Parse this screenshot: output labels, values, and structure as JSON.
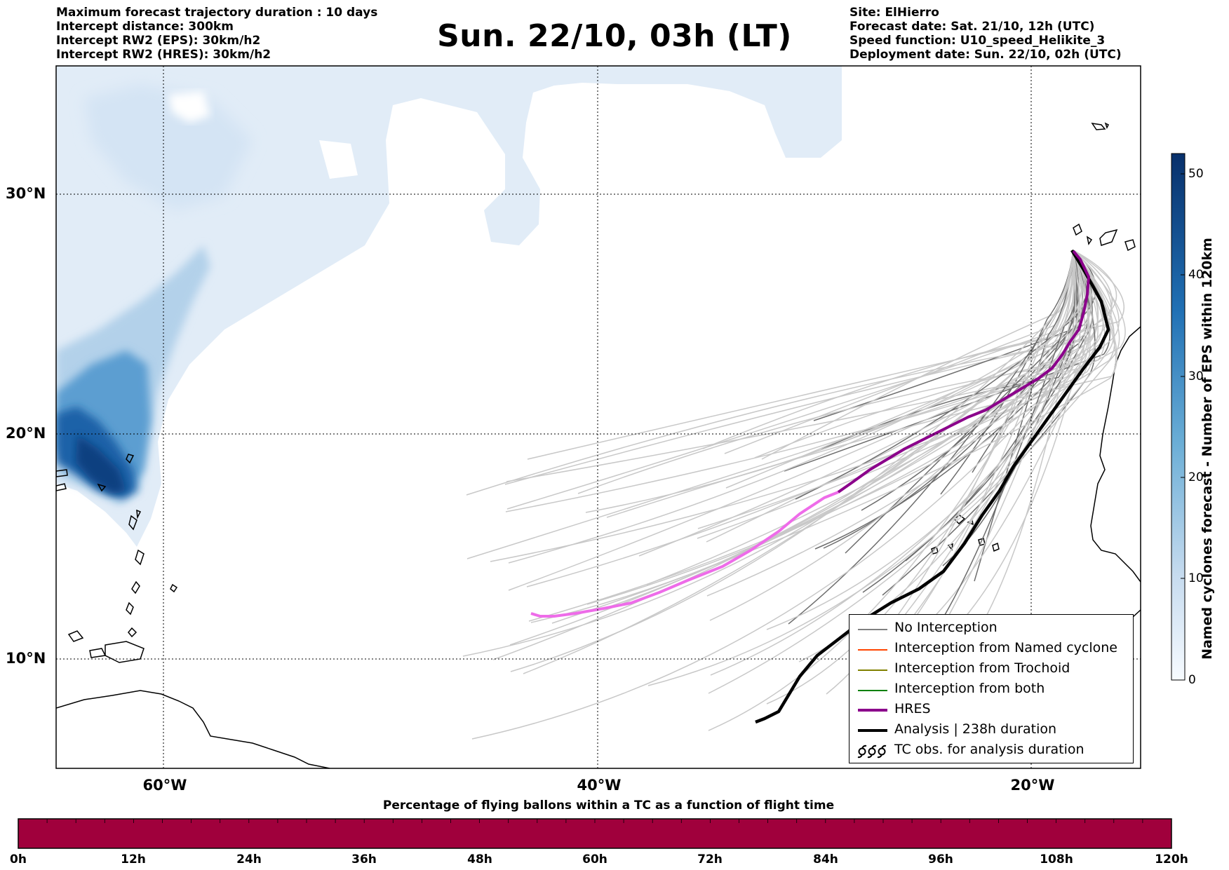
{
  "header_left": [
    "Maximum forecast trajectory duration : 10 days",
    "Intercept distance: 300km",
    "Intercept RW2 (EPS):  30km/h2",
    "Intercept RW2 (HRES): 30km/h2"
  ],
  "title": "Sun. 22/10, 03h (LT)",
  "header_right": [
    "Site: ElHierro",
    "Forecast date: Sat. 21/10, 12h (UTC)",
    "Speed function: U10_speed_Helikite_3",
    "Deployment date: Sun. 22/10, 02h (UTC)"
  ],
  "map": {
    "lat_labels": [
      "30°N",
      "20°N",
      "10°N"
    ],
    "lon_labels": [
      "60°W",
      "40°W",
      "20°W"
    ],
    "gridlines": "dotted"
  },
  "colorbar": {
    "label": "Named cyclones forecast - Number of EPS within 120km",
    "ticks": [
      "0",
      "10",
      "20",
      "30",
      "40",
      "50"
    ],
    "max": 52,
    "colormap": "Blues"
  },
  "legend": {
    "items": [
      {
        "label": "No Interception",
        "color": "#808080",
        "style": "thin"
      },
      {
        "label": "Interception from Named cyclone",
        "color": "#ff4500",
        "style": "thin"
      },
      {
        "label": "Interception from Trochoid",
        "color": "#808000",
        "style": "thin"
      },
      {
        "label": "Interception from both",
        "color": "#008000",
        "style": "thin"
      },
      {
        "label": "HRES",
        "color": "#8b008b",
        "style": "thick"
      },
      {
        "label": "Analysis | 238h duration",
        "color": "#000000",
        "style": "thick"
      },
      {
        "label": "TC obs. for analysis duration",
        "color": "#000000",
        "style": "symbol"
      }
    ]
  },
  "bottom_bar": {
    "title": "Percentage of flying ballons within a TC as a function of flight time",
    "color": "#a0003c",
    "ticks": [
      "0h",
      "12h",
      "24h",
      "36h",
      "48h",
      "60h",
      "72h",
      "84h",
      "96h",
      "108h",
      "120h"
    ]
  }
}
